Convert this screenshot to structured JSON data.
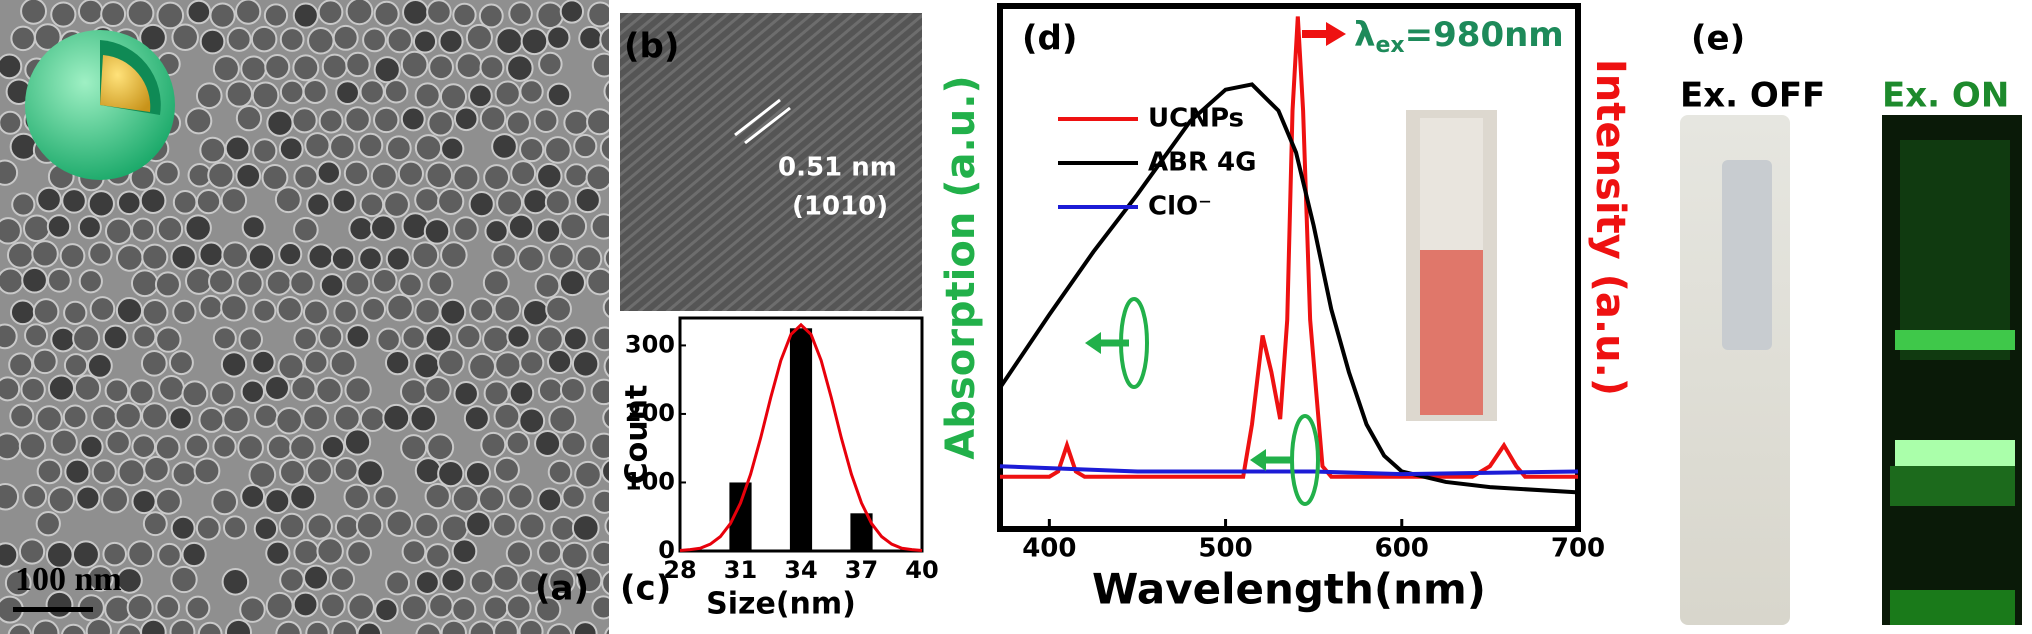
{
  "chart_data": [
    {
      "type": "bar",
      "panel_label": "(c)",
      "xlabel": "Size(nm)",
      "ylabel": "Count",
      "x": [
        31,
        34,
        37
      ],
      "values": [
        100,
        325,
        55
      ],
      "color": "#000000",
      "fit": {
        "color": "#e8000b",
        "x": [
          28,
          28.5,
          29,
          29.5,
          30,
          30.5,
          31,
          31.5,
          32,
          32.5,
          33,
          33.5,
          34,
          34.5,
          35,
          35.5,
          36,
          36.5,
          37,
          37.5,
          38,
          38.5,
          39,
          39.5,
          40
        ],
        "values": [
          0.7,
          2,
          4,
          10,
          21,
          40,
          70,
          112,
          165,
          224,
          278,
          316,
          330,
          316,
          278,
          224,
          165,
          112,
          70,
          40,
          21,
          10,
          4,
          2,
          0.7
        ]
      },
      "xlim": [
        28,
        40
      ],
      "xticks": [
        28,
        31,
        34,
        37,
        40
      ],
      "ylim": [
        0,
        340
      ],
      "yticks": [
        0,
        100,
        200,
        300
      ]
    },
    {
      "type": "line",
      "panel_label": "(d)",
      "xlabel": "Wavelength(nm)",
      "ylabel": "Absorption (a.u.)",
      "y2label": "Intensity (a.u.)",
      "annotation": {
        "symbol": "λ",
        "subscript": "ex",
        "text": "=980nm"
      },
      "xlim": [
        372,
        700
      ],
      "xticks": [
        400,
        500,
        600,
        700
      ],
      "ylim": [
        0,
        1
      ],
      "legend": "upper left",
      "series": [
        {
          "name": "UCNPs",
          "color": "#ee1111",
          "x": [
            372,
            400,
            405,
            410,
            415,
            420,
            510,
            515,
            521,
            526,
            531,
            535,
            538,
            541,
            544,
            548,
            555,
            560,
            640,
            650,
            658,
            665,
            670,
            700
          ],
          "values": [
            0.1,
            0.1,
            0.11,
            0.16,
            0.11,
            0.1,
            0.1,
            0.2,
            0.37,
            0.3,
            0.21,
            0.4,
            0.8,
            0.98,
            0.8,
            0.4,
            0.12,
            0.1,
            0.1,
            0.12,
            0.16,
            0.12,
            0.1,
            0.1
          ]
        },
        {
          "name": "ABR 4G",
          "color": "#000000",
          "x": [
            372,
            400,
            425,
            450,
            480,
            500,
            515,
            530,
            540,
            550,
            560,
            570,
            580,
            590,
            600,
            625,
            650,
            700
          ],
          "values": [
            0.27,
            0.41,
            0.53,
            0.64,
            0.78,
            0.84,
            0.85,
            0.8,
            0.72,
            0.58,
            0.42,
            0.3,
            0.2,
            0.14,
            0.11,
            0.09,
            0.08,
            0.07
          ]
        },
        {
          "name": "ClO⁻",
          "color": "#1c1cd6",
          "x": [
            372,
            450,
            500,
            550,
            600,
            700
          ],
          "values": [
            0.12,
            0.11,
            0.11,
            0.11,
            0.105,
            0.11
          ]
        }
      ]
    }
  ],
  "panels": {
    "a": {
      "label": "(a)",
      "scale_bar": "100 nm"
    },
    "b": {
      "label": "(b)",
      "spacing": "0.51 nm",
      "plane": "(1010)"
    },
    "e": {
      "label": "(e)",
      "off": "Ex. OFF",
      "on": "Ex. ON"
    }
  }
}
